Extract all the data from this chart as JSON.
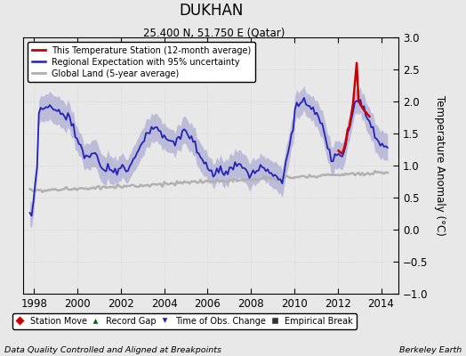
{
  "title": "DUKHAN",
  "subtitle": "25.400 N, 51.750 E (Qatar)",
  "ylabel": "Temperature Anomaly (°C)",
  "xlabel_left": "Data Quality Controlled and Aligned at Breakpoints",
  "xlabel_right": "Berkeley Earth",
  "ylim": [
    -1,
    3
  ],
  "xlim_start": 1997.5,
  "xlim_end": 2014.8,
  "yticks": [
    -1,
    -0.5,
    0,
    0.5,
    1,
    1.5,
    2,
    2.5,
    3
  ],
  "xticks": [
    1998,
    2000,
    2002,
    2004,
    2006,
    2008,
    2010,
    2012,
    2014
  ],
  "bg_color": "#e8e8e8",
  "plot_bg_color": "#e8e8e8",
  "regional_color": "#2222bb",
  "regional_fill_color": "#9999cc",
  "station_color": "#cc0000",
  "global_color": "#b0b0b0",
  "legend_items": [
    {
      "label": "This Temperature Station (12-month average)",
      "color": "#cc0000",
      "lw": 2.0
    },
    {
      "label": "Regional Expectation with 95% uncertainty",
      "color": "#2222bb",
      "lw": 1.8
    },
    {
      "label": "Global Land (5-year average)",
      "color": "#b0b0b0",
      "lw": 2.0
    }
  ],
  "bottom_legend_items": [
    {
      "label": "Station Move",
      "marker": "D",
      "color": "#cc0000"
    },
    {
      "label": "Record Gap",
      "marker": "^",
      "color": "#006600"
    },
    {
      "label": "Time of Obs. Change",
      "marker": "v",
      "color": "#2222bb"
    },
    {
      "label": "Empirical Break",
      "marker": "s",
      "color": "#333333"
    }
  ]
}
